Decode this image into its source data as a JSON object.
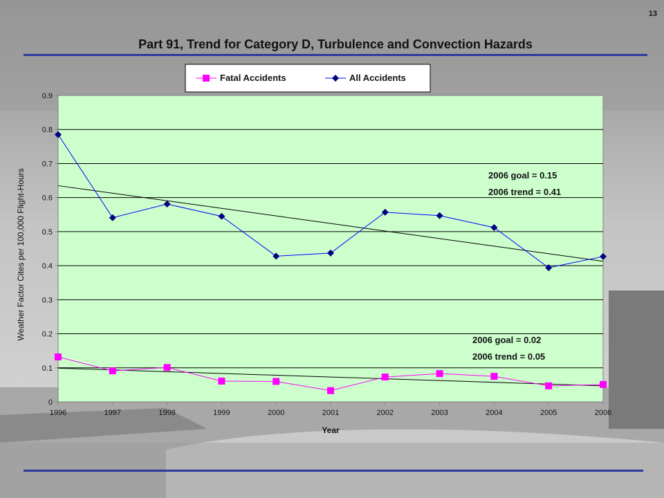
{
  "slide": {
    "number": "13",
    "title": "Part 91, Trend for Category D, Turbulence and Convection Hazards"
  },
  "colors": {
    "plot_background": "#ccffcc",
    "fatal_series": "#ff00ff",
    "all_series": "#0000ff",
    "all_marker": "#000080",
    "trend_line": "#000000",
    "rule": "#2b3a9a"
  },
  "chart_data": {
    "type": "line",
    "title": "",
    "xlabel": "Year",
    "ylabel": "Weather Factor Cites per 100,000 Flight-Hours",
    "x": [
      1996,
      1997,
      1998,
      1999,
      2000,
      2001,
      2002,
      2003,
      2004,
      2005,
      2006
    ],
    "xlim": [
      1996,
      2006
    ],
    "ylim": [
      0,
      0.9
    ],
    "yticks": [
      0,
      0.1,
      0.2,
      0.3,
      0.4,
      0.5,
      0.6,
      0.7,
      0.8,
      0.9
    ],
    "ytick_labels": [
      "0",
      "0.1",
      "0.2",
      "0.3",
      "0.4",
      "0.5",
      "0.6",
      "0.7",
      "0.8",
      "0.9"
    ],
    "grid": "horizontal",
    "legend_position": "top-center",
    "series": [
      {
        "name": "Fatal Accidents",
        "marker": "square",
        "color": "#ff00ff",
        "values": [
          0.132,
          0.091,
          0.101,
          0.061,
          0.06,
          0.033,
          0.073,
          0.083,
          0.075,
          0.047,
          0.051
        ]
      },
      {
        "name": "All Accidents",
        "marker": "diamond",
        "color": "#0000ff",
        "values": [
          0.785,
          0.541,
          0.581,
          0.545,
          0.428,
          0.437,
          0.557,
          0.547,
          0.512,
          0.394,
          0.427
        ]
      }
    ],
    "trend_lines": [
      {
        "series": "All Accidents",
        "start": [
          1996,
          0.635
        ],
        "end": [
          2006,
          0.413
        ]
      },
      {
        "series": "Fatal Accidents",
        "start": [
          1996,
          0.099
        ],
        "end": [
          2006,
          0.047
        ]
      }
    ],
    "annotations": {
      "all": {
        "line1": "2006 goal = 0.15",
        "line2": "2006 trend = 0.41"
      },
      "fatal": {
        "line1": "2006 goal = 0.02",
        "line2": "2006 trend = 0.05"
      }
    }
  }
}
